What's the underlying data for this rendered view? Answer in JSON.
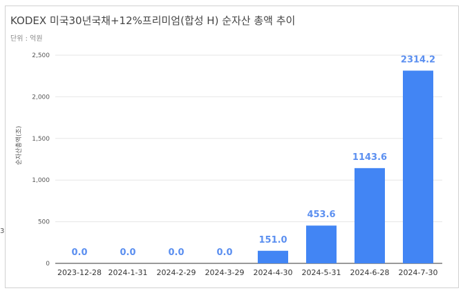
{
  "chart_data": {
    "type": "bar",
    "title": "KODEX 미국30년국채+12%프리미엄(합성 H) 순자산 총액 추이",
    "subtitle": "단위 : 억원",
    "ylabel": "순자산총액(조)",
    "xlabel": "",
    "categories": [
      "2023-12-28",
      "2024-1-31",
      "2024-2-29",
      "2024-3-29",
      "2024-4-30",
      "2024-5-31",
      "2024-6-28",
      "2024-7-30"
    ],
    "values": [
      0.0,
      0.0,
      0.0,
      0.0,
      151.0,
      453.6,
      1143.6,
      2314.2
    ],
    "data_labels": [
      "0.0",
      "0.0",
      "0.0",
      "0.0",
      "151.0",
      "453.6",
      "1143.6",
      "2314.2"
    ],
    "yticks": [
      0,
      500,
      1000,
      1500,
      2000,
      2500
    ],
    "ytick_labels": [
      "0",
      "500",
      "1,000",
      "1,500",
      "2,000",
      "2,500"
    ],
    "ylim": [
      0,
      2500
    ],
    "grid": true,
    "legend": "none",
    "bar_color": "#4285f4",
    "label_color": "#5b8ff0"
  },
  "stray_text": "3"
}
